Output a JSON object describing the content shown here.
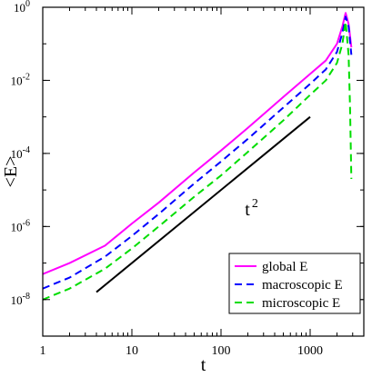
{
  "chart_data": {
    "type": "line",
    "title": "",
    "xlabel": "t",
    "ylabel": "<E>",
    "xscale": "log",
    "yscale": "log",
    "xlim": [
      1,
      4000
    ],
    "ylim": [
      1e-09,
      1
    ],
    "x_ticks": [
      1,
      10,
      100,
      1000
    ],
    "x_tick_labels": [
      "1",
      "10",
      "100",
      "1000"
    ],
    "y_ticks": [
      1e-08,
      1e-06,
      0.0001,
      0.01,
      1
    ],
    "y_tick_labels": [
      {
        "base": "10",
        "exp": "-8"
      },
      {
        "base": "10",
        "exp": "-6"
      },
      {
        "base": "10",
        "exp": "-4"
      },
      {
        "base": "10",
        "exp": "-2"
      },
      {
        "base": "10",
        "exp": "0"
      }
    ],
    "grid": false,
    "legend_position": "bottom-right",
    "series": [
      {
        "name": "global E",
        "color": "#ff00ff",
        "dash": "solid",
        "x": [
          1,
          2,
          5,
          10,
          20,
          50,
          100,
          200,
          500,
          1000,
          1500,
          2000,
          2300,
          2500,
          2700,
          2900
        ],
        "y": [
          5e-08,
          1e-07,
          3e-07,
          1.2e-06,
          4.5e-06,
          3e-05,
          0.00012,
          0.0005,
          0.0035,
          0.015,
          0.035,
          0.1,
          0.3,
          0.7,
          0.35,
          0.08
        ]
      },
      {
        "name": "macroscopic E",
        "color": "#0000ff",
        "dash": "dashed",
        "x": [
          1,
          2,
          5,
          10,
          20,
          50,
          100,
          200,
          500,
          1000,
          1500,
          2000,
          2300,
          2500,
          2700,
          2900
        ],
        "y": [
          2e-08,
          4e-08,
          1.5e-07,
          5.5e-07,
          2.2e-06,
          1.5e-05,
          6e-05,
          0.00025,
          0.0018,
          0.008,
          0.02,
          0.06,
          0.2,
          0.55,
          0.3,
          0.05
        ]
      },
      {
        "name": "microscopic E",
        "color": "#00dd00",
        "dash": "dashed",
        "x": [
          1,
          2,
          5,
          10,
          20,
          50,
          100,
          200,
          500,
          1000,
          1500,
          2000,
          2300,
          2500,
          2700,
          2800,
          2900
        ],
        "y": [
          1e-08,
          2e-08,
          7e-08,
          2.5e-07,
          1e-06,
          6.5e-06,
          2.5e-05,
          0.00011,
          0.0008,
          0.004,
          0.01,
          0.03,
          0.1,
          0.4,
          0.05,
          0.002,
          2e-05
        ]
      }
    ],
    "annotations": [
      {
        "label_base": "t",
        "label_exp": "2",
        "label_at": [
          220,
          2e-06
        ],
        "line_x": [
          4,
          1000
        ],
        "line_y": [
          1.6e-08,
          0.001
        ],
        "color": "#000000"
      }
    ]
  }
}
